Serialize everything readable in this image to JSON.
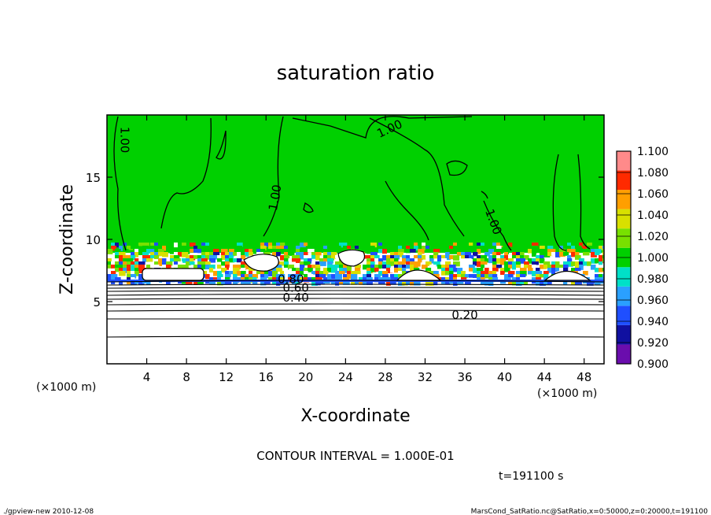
{
  "chart_data": {
    "type": "heatmap",
    "title": "saturation ratio",
    "xlabel": "X-coordinate",
    "ylabel": "Z-coordinate",
    "x_unit_left": "(×1000 m)",
    "x_unit_right": "(×1000 m)",
    "xlim": [
      0,
      50
    ],
    "ylim": [
      0,
      20
    ],
    "x_ticks": [
      4,
      8,
      12,
      16,
      20,
      24,
      28,
      32,
      36,
      40,
      44,
      48
    ],
    "y_ticks": [
      5,
      10,
      15
    ],
    "colorbar": {
      "levels": [
        0.9,
        0.92,
        0.94,
        0.96,
        0.98,
        1.0,
        1.02,
        1.04,
        1.06,
        1.08,
        1.1
      ],
      "labels": [
        "0.900",
        "0.920",
        "0.940",
        "0.960",
        "0.980",
        "1.000",
        "1.020",
        "1.040",
        "1.060",
        "1.080",
        "1.100"
      ],
      "colors": [
        "#6a0dad",
        "#1010a0",
        "#1f4fff",
        "#2aa0ff",
        "#00e0c8",
        "#00d000",
        "#78e000",
        "#d8e000",
        "#ff9f00",
        "#ff2a00",
        "#ff8a8a"
      ]
    },
    "contour_labels": [
      {
        "text": "0.20",
        "x": 36,
        "z": 3.6
      },
      {
        "text": "0.40",
        "x": 19,
        "z": 5.0
      },
      {
        "text": "0.60",
        "x": 19,
        "z": 5.8
      },
      {
        "text": "0.80",
        "x": 18.5,
        "z": 6.5
      },
      {
        "text": "1.00",
        "x": 1.4,
        "z": 18.0
      },
      {
        "text": "1.00",
        "x": 17.3,
        "z": 13.3
      },
      {
        "text": "1.00",
        "x": 28.6,
        "z": 18.6
      },
      {
        "text": "1.00",
        "x": 38.5,
        "z": 11.3
      }
    ],
    "contour_interval_text": "CONTOUR INTERVAL = 1.000E-01",
    "time_text": "t=191100 s"
  },
  "footer": {
    "left": "./gpview-new  2010-12-08",
    "right": "MarsCond_SatRatio.nc@SatRatio,x=0:50000,z=0:20000,t=191100"
  }
}
